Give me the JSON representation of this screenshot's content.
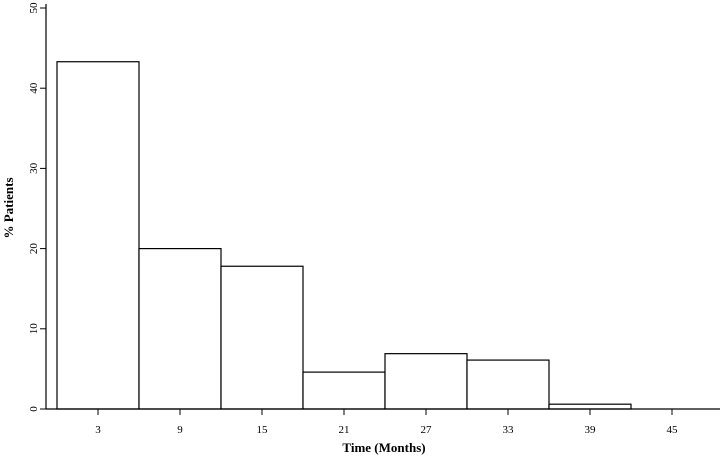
{
  "chart_data": {
    "type": "bar",
    "xlabel": "Time (Months)",
    "ylabel": "% Patients",
    "ylim": [
      0,
      50
    ],
    "yticks": [
      "0",
      "10",
      "20",
      "30",
      "40",
      "50"
    ],
    "categories": [
      "3",
      "9",
      "15",
      "21",
      "27",
      "33",
      "39",
      "45"
    ],
    "values": [
      43.3,
      20.0,
      17.8,
      4.6,
      6.9,
      6.1,
      0.6,
      0.0
    ],
    "grid": false,
    "legend": "none"
  }
}
